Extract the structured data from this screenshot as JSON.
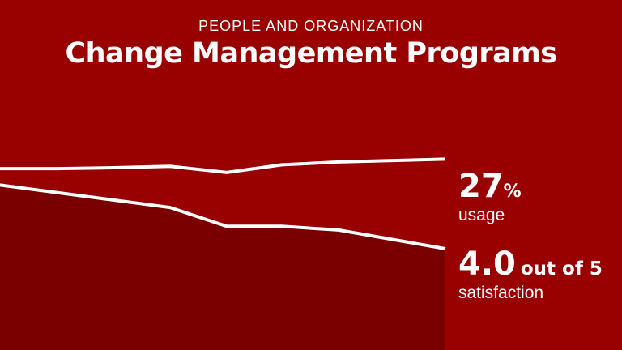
{
  "header": {
    "eyebrow": "PEOPLE AND ORGANIZATION",
    "title": "Change Management Programs"
  },
  "callouts": {
    "usage": {
      "value": "27",
      "unit": "%",
      "label": "usage"
    },
    "satisfaction": {
      "value": "4.0",
      "unit": "out of 5",
      "label": "satisfaction"
    }
  },
  "colors": {
    "background": "#990000",
    "area_fill": "#7a0000",
    "line": "#ffffff",
    "text": "#ffffff"
  },
  "chart_data": [
    {
      "type": "area",
      "name": "usage",
      "x_index": [
        0,
        1,
        2,
        3,
        4,
        5,
        6,
        7
      ],
      "values": [
        44,
        42,
        40,
        38,
        33,
        33,
        32,
        27
      ],
      "ylim": [
        0,
        70
      ],
      "grid": false,
      "legend": "none"
    },
    {
      "type": "line",
      "name": "satisfaction",
      "x_index": [
        0,
        1,
        2,
        3,
        4,
        5,
        6,
        7
      ],
      "values": [
        3.8,
        3.8,
        3.82,
        3.85,
        3.72,
        3.88,
        3.94,
        4.0
      ],
      "ylim": [
        0,
        5.5
      ],
      "grid": false,
      "legend": "none"
    }
  ]
}
